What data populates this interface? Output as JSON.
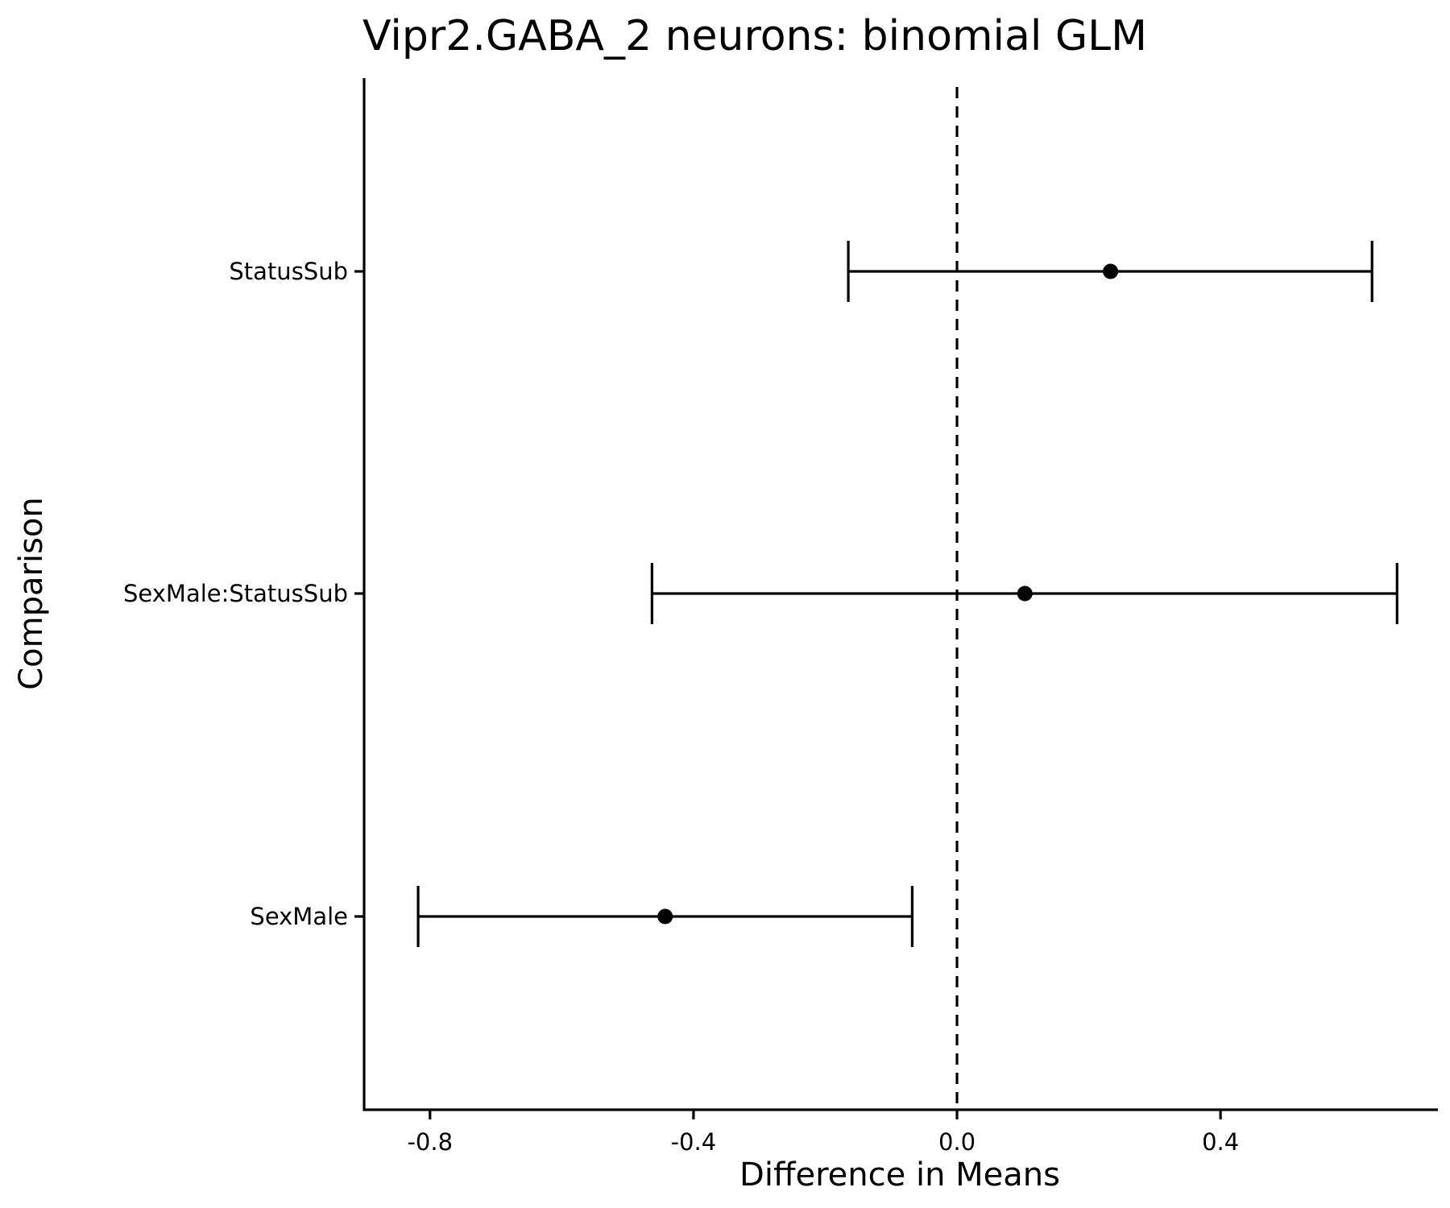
{
  "chart_data": {
    "type": "scatter",
    "title": "Vipr2.GABA_2 neurons: binomial GLM",
    "xlabel": "Difference in Means",
    "ylabel": "Comparison",
    "xlim": [
      -0.9,
      0.73
    ],
    "x_ticks": [
      -0.8,
      -0.4,
      0.0,
      0.4
    ],
    "x_tick_labels": [
      "-0.8",
      "-0.4",
      "0.0",
      "0.4"
    ],
    "categories": [
      "StatusSub",
      "SexMale:StatusSub",
      "SexMale"
    ],
    "points": [
      {
        "label": "StatusSub",
        "estimate": 0.233,
        "lower": -0.165,
        "upper": 0.63
      },
      {
        "label": "SexMale:StatusSub",
        "estimate": 0.103,
        "lower": -0.463,
        "upper": 0.668
      },
      {
        "label": "SexMale",
        "estimate": -0.443,
        "lower": -0.818,
        "upper": -0.068
      }
    ],
    "reference_line": {
      "x": 0.0,
      "style": "dashed"
    },
    "grid": false,
    "legend": "none",
    "colors": {
      "line": "#000000",
      "point": "#000000"
    }
  }
}
